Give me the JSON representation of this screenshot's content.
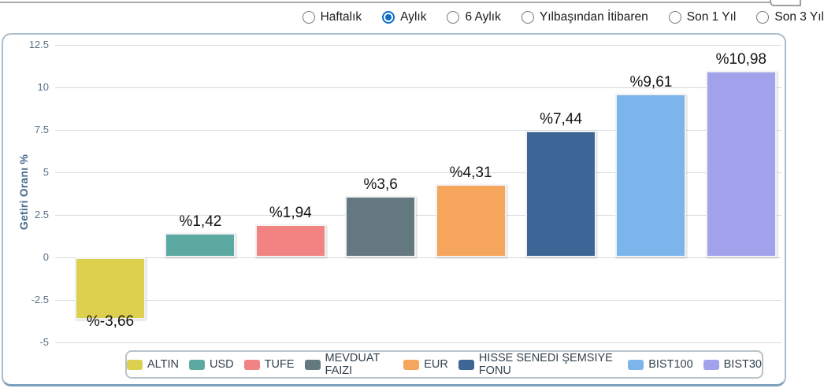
{
  "controls": {
    "periods": [
      {
        "label": "Haftalık",
        "selected": false
      },
      {
        "label": "Aylık",
        "selected": true
      },
      {
        "label": "6 Aylık",
        "selected": false
      },
      {
        "label": "Yılbaşından İtibaren",
        "selected": false
      },
      {
        "label": "Son 1 Yıl",
        "selected": false
      },
      {
        "label": "Son 3 Yıl",
        "selected": false
      }
    ]
  },
  "chart_data": {
    "type": "bar",
    "title": "",
    "xlabel": "",
    "ylabel": "Getiri Oranı %",
    "ylim": [
      -5,
      12.5
    ],
    "yticks": [
      "12.5",
      "10",
      "7.5",
      "5",
      "2.5",
      "0",
      "-2.5",
      "-5"
    ],
    "ytick_values": [
      12.5,
      10,
      7.5,
      5,
      2.5,
      0,
      -2.5,
      -5
    ],
    "grid": true,
    "legend_position": "bottom",
    "categories": [
      "ALTIN",
      "USD",
      "TUFE",
      "MEVDUAT FAIZI",
      "EUR",
      "HISSE SENEDI ŞEMSIYE FONU",
      "BIST100",
      "BIST30"
    ],
    "values": [
      -3.66,
      1.42,
      1.94,
      3.6,
      4.31,
      7.44,
      9.61,
      10.98
    ],
    "value_labels": [
      "%-3,66",
      "%1,42",
      "%1,94",
      "%3,6",
      "%4,31",
      "%7,44",
      "%9,61",
      "%10,98"
    ],
    "colors": [
      "#dcd04e",
      "#5ca9a2",
      "#f28383",
      "#647880",
      "#f6a55c",
      "#3d6596",
      "#7cb5ec",
      "#a2a2ec"
    ]
  }
}
